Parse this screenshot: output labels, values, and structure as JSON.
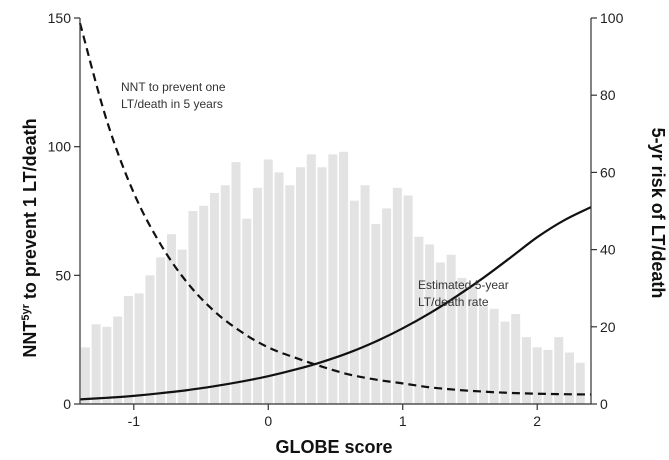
{
  "chart_data": {
    "type": "bar",
    "xlabel": "GLOBE score",
    "ylabel_left": {
      "prefix": "NNT",
      "superscript": "5yr",
      "suffix": " to prevent 1 LT/death"
    },
    "ylabel_right": "5-yr risk of LT/death",
    "xlim": [
      -1.4,
      2.4
    ],
    "ylim_left": [
      0,
      150
    ],
    "ylim_right": [
      0,
      100
    ],
    "x_ticks": [
      -1,
      0,
      1,
      2
    ],
    "x_tick_labels": [
      "-1",
      "0",
      "1",
      "2"
    ],
    "y_left_ticks": [
      0,
      50,
      100,
      150
    ],
    "y_left_tick_labels": [
      "0",
      "50",
      "100",
      "150"
    ],
    "y_right_ticks": [
      0,
      20,
      40,
      60,
      80,
      100
    ],
    "y_right_tick_labels": [
      "0",
      "20",
      "40",
      "60",
      "80",
      "100"
    ],
    "bars": {
      "x": [
        -1.36,
        -1.28,
        -1.2,
        -1.12,
        -1.04,
        -0.96,
        -0.88,
        -0.8,
        -0.72,
        -0.64,
        -0.56,
        -0.48,
        -0.4,
        -0.32,
        -0.24,
        -0.16,
        -0.08,
        0.0,
        0.08,
        0.16,
        0.24,
        0.32,
        0.4,
        0.48,
        0.56,
        0.64,
        0.72,
        0.8,
        0.88,
        0.96,
        1.04,
        1.12,
        1.2,
        1.28,
        1.36,
        1.44,
        1.52,
        1.6,
        1.68,
        1.76,
        1.84,
        1.92,
        2.0,
        2.08,
        2.16,
        2.24,
        2.32
      ],
      "values": [
        22,
        31,
        30,
        34,
        42,
        43,
        50,
        57,
        66,
        60,
        75,
        77,
        82,
        85,
        94,
        72,
        84,
        95,
        90,
        85,
        92,
        97,
        92,
        97,
        98,
        79,
        85,
        70,
        76,
        84,
        81,
        65,
        62,
        55,
        58,
        49,
        46,
        38,
        37,
        32,
        35,
        26,
        22,
        21,
        26,
        20,
        16
      ]
    },
    "series": [
      {
        "name": "NNT to prevent one LT/death in 5 years",
        "axis": "left",
        "style": "dashed",
        "x": [
          -1.4,
          -1.2,
          -1.0,
          -0.8,
          -0.6,
          -0.4,
          -0.2,
          0.0,
          0.2,
          0.4,
          0.6,
          0.8,
          1.0,
          1.2,
          1.4,
          1.6,
          1.8,
          2.0,
          2.2,
          2.4
        ],
        "y": [
          148,
          110,
          82,
          62,
          47,
          36,
          28,
          22,
          18,
          14.5,
          11.5,
          9.5,
          8,
          6.5,
          5.5,
          4.8,
          4.3,
          4,
          3.8,
          3.7
        ]
      },
      {
        "name": "Estimated 5-year LT/death rate",
        "axis": "right",
        "style": "solid",
        "x": [
          -1.4,
          -1.2,
          -1.0,
          -0.8,
          -0.6,
          -0.4,
          -0.2,
          0.0,
          0.2,
          0.4,
          0.6,
          0.8,
          1.0,
          1.2,
          1.4,
          1.6,
          1.8,
          2.0,
          2.2,
          2.4
        ],
        "y": [
          1.2,
          1.6,
          2.1,
          2.8,
          3.6,
          4.6,
          5.8,
          7.2,
          8.9,
          10.9,
          13.3,
          16.2,
          19.6,
          23.5,
          27.9,
          32.7,
          37.9,
          43.2,
          47.6,
          51
        ]
      }
    ],
    "annotations": [
      {
        "lines": [
          "NNT to prevent one",
          "LT/death in 5 years"
        ]
      },
      {
        "lines": [
          "Estimated 5-year",
          "LT/death rate"
        ]
      }
    ],
    "colors": {
      "bars": "#e3e3e3",
      "lines": "#111111",
      "axes": "#333333"
    }
  }
}
